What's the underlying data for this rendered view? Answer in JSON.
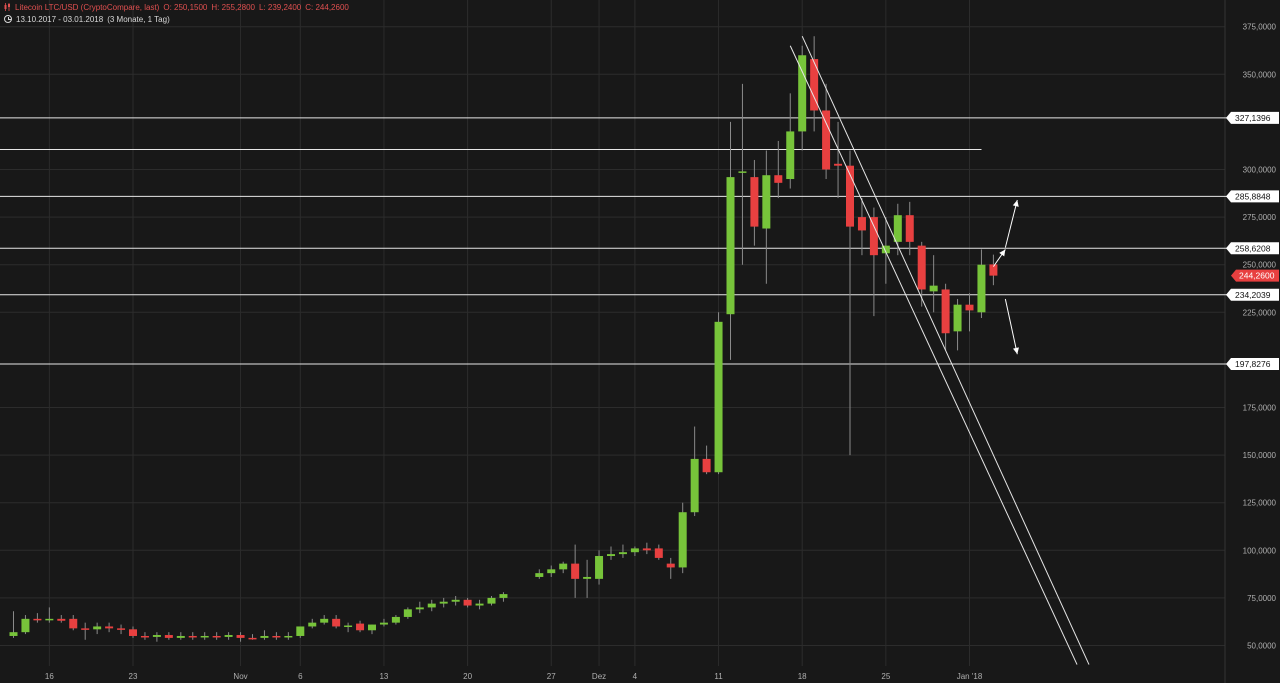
{
  "header": {
    "instrument": "Litecoin LTC/USD (CryptoCompare, last)",
    "open": "O: 250,1500",
    "high": "H: 255,2800",
    "low": "L: 239,2400",
    "close": "C: 244,2600",
    "period": "13.10.2017 - 03.01.2018",
    "interval": "(3 Monate, 1 Tag)"
  },
  "colors": {
    "background": "#181818",
    "up": "#77c43a",
    "down": "#e84040",
    "lines": "#e6e6e6",
    "grid": "#2c2c2c"
  },
  "chart_data": {
    "type": "candlestick",
    "grid": true,
    "y_scale": "linear",
    "ylim": [
      40,
      380
    ],
    "y_ticks": [
      50,
      75,
      100,
      125,
      150,
      175,
      225,
      250,
      275,
      300,
      350,
      375
    ],
    "y_tick_labels": [
      "50,0000",
      "75,0000",
      "100,0000",
      "125,0000",
      "150,0000",
      "175,0000",
      "225,0000",
      "250,0000",
      "275,0000",
      "300,0000",
      "350,0000",
      "375,0000"
    ],
    "x_tick_labels": [
      {
        "label": "16",
        "date": "2017-10-16"
      },
      {
        "label": "23",
        "date": "2017-10-23"
      },
      {
        "label": "Nov",
        "date": "2017-11-01"
      },
      {
        "label": "6",
        "date": "2017-11-06"
      },
      {
        "label": "13",
        "date": "2017-11-13"
      },
      {
        "label": "20",
        "date": "2017-11-20"
      },
      {
        "label": "27",
        "date": "2017-11-27"
      },
      {
        "label": "Dez",
        "date": "2017-12-01"
      },
      {
        "label": "4",
        "date": "2017-12-04"
      },
      {
        "label": "11",
        "date": "2017-12-11"
      },
      {
        "label": "18",
        "date": "2017-12-18"
      },
      {
        "label": "25",
        "date": "2017-12-25"
      },
      {
        "label": "Jan '18",
        "date": "2018-01-01"
      }
    ],
    "candles": [
      {
        "date": "2017-10-13",
        "o": 55,
        "h": 68,
        "l": 54,
        "c": 57
      },
      {
        "date": "2017-10-14",
        "o": 57,
        "h": 66,
        "l": 56,
        "c": 64
      },
      {
        "date": "2017-10-15",
        "o": 64,
        "h": 67,
        "l": 62,
        "c": 63.5
      },
      {
        "date": "2017-10-16",
        "o": 63.5,
        "h": 70,
        "l": 62,
        "c": 64
      },
      {
        "date": "2017-10-17",
        "o": 64,
        "h": 66,
        "l": 62,
        "c": 63
      },
      {
        "date": "2017-10-18",
        "o": 64,
        "h": 66,
        "l": 58,
        "c": 59
      },
      {
        "date": "2017-10-19",
        "o": 59,
        "h": 62,
        "l": 53,
        "c": 58.5
      },
      {
        "date": "2017-10-20",
        "o": 58.5,
        "h": 62,
        "l": 56,
        "c": 60
      },
      {
        "date": "2017-10-21",
        "o": 60,
        "h": 62,
        "l": 57,
        "c": 59
      },
      {
        "date": "2017-10-22",
        "o": 59,
        "h": 61,
        "l": 56,
        "c": 58.5
      },
      {
        "date": "2017-10-23",
        "o": 58.5,
        "h": 60,
        "l": 54,
        "c": 55
      },
      {
        "date": "2017-10-24",
        "o": 55,
        "h": 57,
        "l": 53,
        "c": 54.5
      },
      {
        "date": "2017-10-25",
        "o": 54.5,
        "h": 57,
        "l": 52,
        "c": 55.5
      },
      {
        "date": "2017-10-26",
        "o": 55.5,
        "h": 57,
        "l": 53,
        "c": 54
      },
      {
        "date": "2017-10-27",
        "o": 54,
        "h": 57,
        "l": 53,
        "c": 55
      },
      {
        "date": "2017-10-28",
        "o": 55,
        "h": 57,
        "l": 53,
        "c": 54.5
      },
      {
        "date": "2017-10-29",
        "o": 54.5,
        "h": 57,
        "l": 53,
        "c": 55
      },
      {
        "date": "2017-10-30",
        "o": 55,
        "h": 57,
        "l": 53,
        "c": 54.5
      },
      {
        "date": "2017-10-31",
        "o": 54.5,
        "h": 57,
        "l": 53,
        "c": 55.5
      },
      {
        "date": "2017-11-01",
        "o": 55.5,
        "h": 57,
        "l": 52,
        "c": 54
      },
      {
        "date": "2017-11-02",
        "o": 54,
        "h": 56,
        "l": 53,
        "c": 53.5
      },
      {
        "date": "2017-11-03",
        "o": 54,
        "h": 58,
        "l": 53,
        "c": 55
      },
      {
        "date": "2017-11-04",
        "o": 55,
        "h": 57,
        "l": 53,
        "c": 54.5
      },
      {
        "date": "2017-11-05",
        "o": 54.5,
        "h": 57,
        "l": 53,
        "c": 55
      },
      {
        "date": "2017-11-06",
        "o": 55,
        "h": 59,
        "l": 54,
        "c": 60
      },
      {
        "date": "2017-11-07",
        "o": 60,
        "h": 64,
        "l": 59,
        "c": 62
      },
      {
        "date": "2017-11-08",
        "o": 62,
        "h": 66,
        "l": 61,
        "c": 64
      },
      {
        "date": "2017-11-09",
        "o": 64,
        "h": 66,
        "l": 59,
        "c": 60
      },
      {
        "date": "2017-11-10",
        "o": 60,
        "h": 62,
        "l": 57,
        "c": 60.5
      },
      {
        "date": "2017-11-11",
        "o": 61.5,
        "h": 63,
        "l": 57,
        "c": 58
      },
      {
        "date": "2017-11-12",
        "o": 58,
        "h": 61,
        "l": 56,
        "c": 61
      },
      {
        "date": "2017-11-13",
        "o": 61,
        "h": 64,
        "l": 60,
        "c": 62
      },
      {
        "date": "2017-11-14",
        "o": 62,
        "h": 66,
        "l": 61,
        "c": 65
      },
      {
        "date": "2017-11-15",
        "o": 65,
        "h": 70,
        "l": 64,
        "c": 69
      },
      {
        "date": "2017-11-16",
        "o": 69,
        "h": 73,
        "l": 67,
        "c": 70
      },
      {
        "date": "2017-11-17",
        "o": 70,
        "h": 74,
        "l": 68,
        "c": 72
      },
      {
        "date": "2017-11-18",
        "o": 72,
        "h": 75,
        "l": 70,
        "c": 73
      },
      {
        "date": "2017-11-19",
        "o": 73,
        "h": 76,
        "l": 71,
        "c": 74
      },
      {
        "date": "2017-11-20",
        "o": 74,
        "h": 75,
        "l": 70,
        "c": 71
      },
      {
        "date": "2017-11-21",
        "o": 71,
        "h": 74,
        "l": 69,
        "c": 72
      },
      {
        "date": "2017-11-22",
        "o": 72,
        "h": 76,
        "l": 71,
        "c": 75
      },
      {
        "date": "2017-11-23",
        "o": 75,
        "h": 78,
        "l": 73,
        "c": 77
      },
      {
        "date": "2017-11-26",
        "o": 86,
        "h": 90,
        "l": 85,
        "c": 88
      },
      {
        "date": "2017-11-27",
        "o": 88,
        "h": 92,
        "l": 86,
        "c": 90
      },
      {
        "date": "2017-11-28",
        "o": 90,
        "h": 94,
        "l": 88,
        "c": 93
      },
      {
        "date": "2017-11-29",
        "o": 93,
        "h": 103,
        "l": 75,
        "c": 85
      },
      {
        "date": "2017-11-30",
        "o": 85,
        "h": 95,
        "l": 75,
        "c": 86
      },
      {
        "date": "2017-12-01",
        "o": 85,
        "h": 100,
        "l": 82,
        "c": 97
      },
      {
        "date": "2017-12-02",
        "o": 97,
        "h": 102,
        "l": 95,
        "c": 98
      },
      {
        "date": "2017-12-03",
        "o": 98,
        "h": 103,
        "l": 96,
        "c": 99
      },
      {
        "date": "2017-12-04",
        "o": 99,
        "h": 102,
        "l": 97,
        "c": 101
      },
      {
        "date": "2017-12-05",
        "o": 101,
        "h": 104,
        "l": 98,
        "c": 100
      },
      {
        "date": "2017-12-06",
        "o": 101,
        "h": 103,
        "l": 95,
        "c": 96
      },
      {
        "date": "2017-12-07",
        "o": 93,
        "h": 96,
        "l": 85,
        "c": 91
      },
      {
        "date": "2017-12-08",
        "o": 91,
        "h": 125,
        "l": 88,
        "c": 120
      },
      {
        "date": "2017-12-09",
        "o": 120,
        "h": 165,
        "l": 118,
        "c": 148
      },
      {
        "date": "2017-12-10",
        "o": 148,
        "h": 155,
        "l": 140,
        "c": 141
      },
      {
        "date": "2017-12-11",
        "o": 141,
        "h": 225,
        "l": 140,
        "c": 220
      },
      {
        "date": "2017-12-12",
        "o": 224,
        "h": 325,
        "l": 200,
        "c": 296
      },
      {
        "date": "2017-12-13",
        "o": 299,
        "h": 345,
        "l": 250,
        "c": 299
      },
      {
        "date": "2017-12-14",
        "o": 296,
        "h": 305,
        "l": 260,
        "c": 270
      },
      {
        "date": "2017-12-15",
        "o": 269,
        "h": 310,
        "l": 240,
        "c": 297
      },
      {
        "date": "2017-12-16",
        "o": 297,
        "h": 315,
        "l": 285,
        "c": 293
      },
      {
        "date": "2017-12-17",
        "o": 295,
        "h": 340,
        "l": 290,
        "c": 320
      },
      {
        "date": "2017-12-18",
        "o": 320,
        "h": 365,
        "l": 310,
        "c": 360
      },
      {
        "date": "2017-12-19",
        "o": 358,
        "h": 370,
        "l": 320,
        "c": 331
      },
      {
        "date": "2017-12-20",
        "o": 331,
        "h": 345,
        "l": 295,
        "c": 300
      },
      {
        "date": "2017-12-21",
        "o": 303,
        "h": 325,
        "l": 285,
        "c": 302
      },
      {
        "date": "2017-12-22",
        "o": 302,
        "h": 310,
        "l": 150,
        "c": 270
      },
      {
        "date": "2017-12-23",
        "o": 275,
        "h": 285,
        "l": 255,
        "c": 268
      },
      {
        "date": "2017-12-24",
        "o": 275,
        "h": 280,
        "l": 223,
        "c": 255
      },
      {
        "date": "2017-12-25",
        "o": 256,
        "h": 275,
        "l": 240,
        "c": 260
      },
      {
        "date": "2017-12-26",
        "o": 262,
        "h": 282,
        "l": 255,
        "c": 276
      },
      {
        "date": "2017-12-27",
        "o": 276,
        "h": 283,
        "l": 255,
        "c": 262
      },
      {
        "date": "2017-12-28",
        "o": 260,
        "h": 262,
        "l": 228,
        "c": 237
      },
      {
        "date": "2017-12-29",
        "o": 236,
        "h": 255,
        "l": 225,
        "c": 239
      },
      {
        "date": "2017-12-30",
        "o": 237,
        "h": 240,
        "l": 205,
        "c": 214
      },
      {
        "date": "2017-12-31",
        "o": 215,
        "h": 232,
        "l": 205,
        "c": 229
      },
      {
        "date": "2018-01-01",
        "o": 229,
        "h": 235,
        "l": 215,
        "c": 226
      },
      {
        "date": "2018-01-02",
        "o": 225,
        "h": 258,
        "l": 222,
        "c": 250
      },
      {
        "date": "2018-01-03",
        "o": 250.15,
        "h": 255.28,
        "l": 239.24,
        "c": 244.26
      }
    ],
    "levels": [
      {
        "value": 327.1396,
        "label": "327,1396"
      },
      {
        "value": 285.8848,
        "label": "285,8848"
      },
      {
        "value": 258.6208,
        "label": "258,6208"
      },
      {
        "value": 234.2039,
        "label": "234,2039"
      },
      {
        "value": 197.8276,
        "label": "197,8276"
      }
    ],
    "extra_line": {
      "value": 310.5,
      "to_date": "2018-01-01"
    },
    "last_price": {
      "value": 244.26,
      "label": "244,2600"
    },
    "trendlines": [
      {
        "from": {
          "date": "2017-12-17",
          "value": 365
        },
        "to": {
          "date": "2018-01-10",
          "value": 40
        }
      },
      {
        "from": {
          "date": "2017-12-18",
          "value": 370
        },
        "to": {
          "date": "2018-01-11",
          "value": 40
        }
      }
    ],
    "arrows": [
      {
        "from": {
          "date": "2018-01-03",
          "value": 249
        },
        "to": {
          "date": "2018-01-04",
          "value": 258
        }
      },
      {
        "from": {
          "date": "2018-01-04",
          "value": 259
        },
        "to": {
          "date": "2018-01-05",
          "value": 284
        }
      },
      {
        "from": {
          "date": "2018-01-04",
          "value": 232
        },
        "to": {
          "date": "2018-01-05",
          "value": 203
        }
      }
    ]
  }
}
